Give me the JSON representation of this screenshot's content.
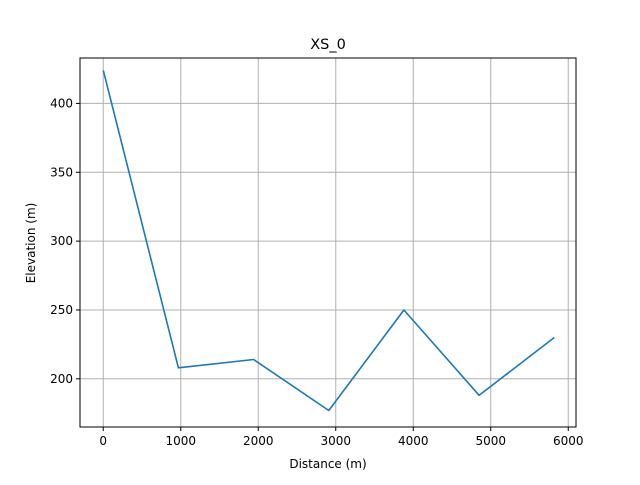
{
  "chart_data": {
    "type": "line",
    "title": "XS_0",
    "xlabel": "Distance (m)",
    "ylabel": "Elevation (m)",
    "xlim": [
      -300,
      6100
    ],
    "ylim": [
      165,
      433
    ],
    "grid": true,
    "x_ticks": [
      0,
      1000,
      2000,
      3000,
      4000,
      5000,
      6000
    ],
    "y_ticks": [
      200,
      250,
      300,
      350,
      400
    ],
    "series": [
      {
        "color": "#1f77b4",
        "x": [
          0,
          970,
          1940,
          2910,
          3880,
          4850,
          5820
        ],
        "y": [
          424,
          208,
          214,
          177,
          250,
          188,
          230
        ]
      }
    ]
  }
}
